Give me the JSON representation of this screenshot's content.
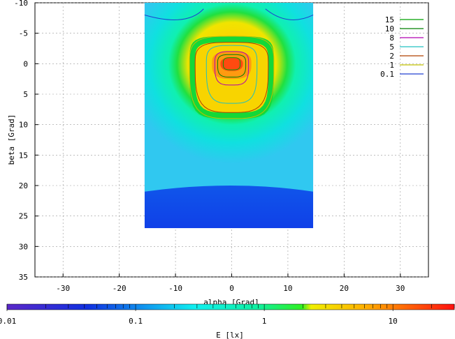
{
  "chart_data": {
    "type": "heatmap",
    "x_axis": {
      "label": "alpha [Grad]",
      "range": [
        -35,
        35
      ],
      "ticks": [
        -30,
        -20,
        -10,
        0,
        10,
        20,
        30
      ]
    },
    "y_axis": {
      "label": "beta [Grad]",
      "range": [
        -10,
        35
      ],
      "inverted": true,
      "ticks": [
        -10,
        -5,
        0,
        5,
        10,
        15,
        20,
        25,
        30,
        35
      ]
    },
    "data_extent": {
      "alpha": [
        -15.5,
        14.5
      ],
      "beta": [
        -10,
        27
      ]
    },
    "peak": {
      "alpha": 0,
      "beta": 0,
      "value": 20
    },
    "grid": true,
    "legend": {
      "placement": "top-right",
      "entries": [
        {
          "label": "15",
          "color": "#00a000"
        },
        {
          "label": "10",
          "color": "#008000"
        },
        {
          "label": "8",
          "color": "#b000b0"
        },
        {
          "label": "5",
          "color": "#20c0c0"
        },
        {
          "label": "2",
          "color": "#b04000"
        },
        {
          "label": "1",
          "color": "#c0c000"
        },
        {
          "label": "0.1",
          "color": "#2040d0"
        }
      ]
    },
    "colorbar": {
      "label": "E [lx]",
      "scale": "log",
      "range": [
        0.01,
        30
      ],
      "ticks": [
        "0.01",
        "0.1",
        "1",
        "10"
      ]
    }
  }
}
